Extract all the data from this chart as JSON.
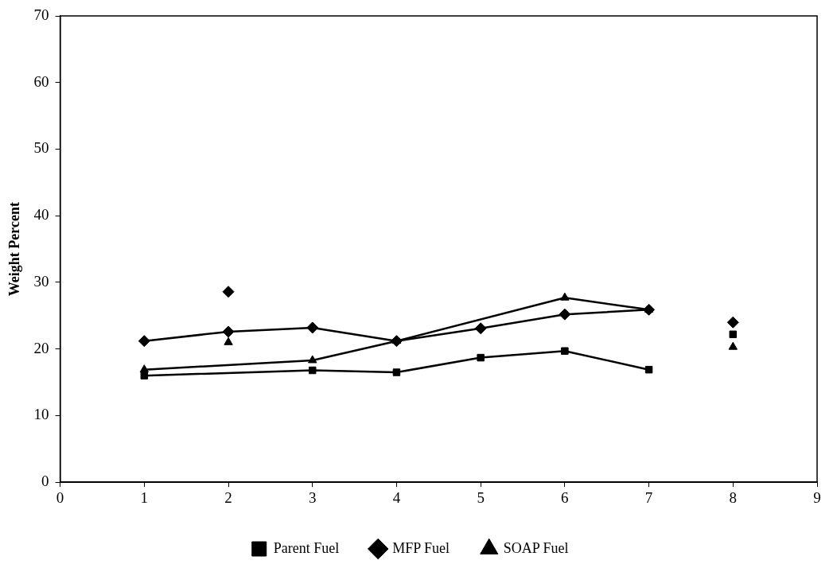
{
  "chart_data": {
    "type": "line",
    "ylabel": "Weight Percent",
    "xlim": [
      0,
      9
    ],
    "xticks": [
      0,
      1,
      2,
      3,
      4,
      5,
      6,
      7,
      8,
      9
    ],
    "ylim": [
      0,
      70
    ],
    "yticks": [
      0,
      10,
      20,
      30,
      40,
      50,
      60,
      70
    ],
    "grid": false,
    "legend": "bottom",
    "line_style": "solid",
    "series": [
      {
        "name": "Parent Fuel",
        "color": "#000000",
        "marker": "square",
        "x": [
          1,
          3,
          4,
          5,
          6,
          7
        ],
        "values": [
          16.0,
          16.8,
          16.5,
          18.7,
          19.7,
          16.9
        ]
      },
      {
        "name": "MFP Fuel",
        "color": "#000000",
        "marker": "diamond",
        "x": [
          1,
          2,
          3,
          4,
          5,
          6,
          7
        ],
        "values": [
          21.2,
          22.6,
          23.2,
          21.2,
          23.1,
          25.2,
          25.9
        ]
      },
      {
        "name": "SOAP Fuel",
        "color": "#000000",
        "marker": "triangle",
        "x": [
          1,
          3,
          4,
          6,
          7
        ],
        "values": [
          16.9,
          18.3,
          21.2,
          27.7,
          25.9
        ]
      },
      {
        "type": "scatter",
        "color": "#000000",
        "marker": "square",
        "x": [
          8
        ],
        "values": [
          22.2
        ]
      },
      {
        "type": "scatter",
        "color": "#000000",
        "marker": "diamond",
        "x": [
          2,
          8
        ],
        "values": [
          28.6,
          24.0
        ]
      },
      {
        "type": "scatter",
        "color": "#000000",
        "marker": "triangle",
        "x": [
          2,
          8
        ],
        "values": [
          21.0,
          20.3
        ]
      }
    ]
  }
}
